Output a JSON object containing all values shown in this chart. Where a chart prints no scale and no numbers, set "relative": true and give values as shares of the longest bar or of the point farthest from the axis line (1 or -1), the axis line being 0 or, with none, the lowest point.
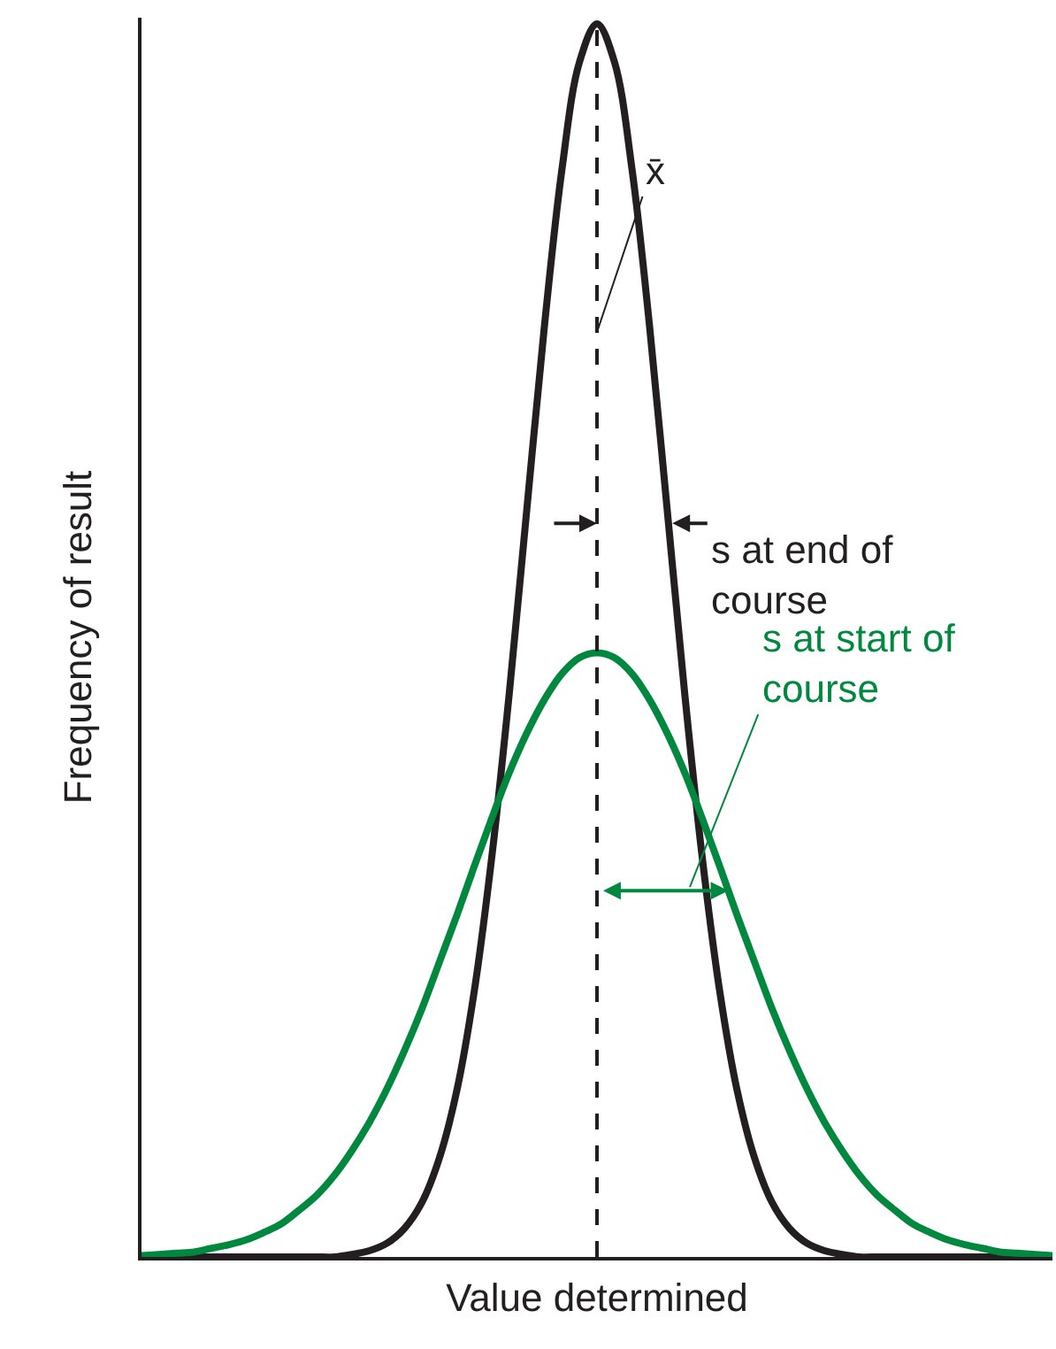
{
  "chart_data": {
    "type": "line",
    "relative": true,
    "tick_labels": false,
    "xlabel": "Value determined",
    "ylabel": "Frequency of result",
    "categories": [
      null,
      null,
      null,
      null,
      null,
      null,
      null,
      null,
      null,
      null,
      null,
      null,
      null,
      null,
      null,
      null,
      null,
      null,
      null,
      null,
      null,
      null,
      null,
      null,
      null,
      null,
      null,
      null,
      null,
      null,
      null,
      null,
      null,
      null,
      null,
      null,
      null,
      null,
      null,
      null,
      null,
      null,
      null,
      null,
      null,
      null,
      null,
      null,
      null,
      null,
      null,
      null,
      null
    ],
    "series": [
      {
        "color": "#231f20",
        "values": [
          0,
          0,
          0,
          0,
          0,
          0,
          0,
          0,
          0,
          0,
          0,
          0,
          0.002,
          0.005,
          0.011,
          0.023,
          0.044,
          0.08,
          0.135,
          0.216,
          0.325,
          0.458,
          0.607,
          0.755,
          0.882,
          0.969,
          1,
          0.969,
          0.882,
          0.755,
          0.607,
          0.458,
          0.325,
          0.216,
          0.135,
          0.08,
          0.044,
          0.023,
          0.011,
          0.005,
          0.002,
          0,
          0,
          0,
          0,
          0,
          0,
          0,
          0,
          0,
          0,
          0,
          0
        ]
      },
      {
        "color": "#00893e",
        "values": [
          0.001,
          0.002,
          0.003,
          0.004,
          0.007,
          0.01,
          0.014,
          0.02,
          0.027,
          0.038,
          0.05,
          0.066,
          0.086,
          0.109,
          0.136,
          0.167,
          0.201,
          0.239,
          0.277,
          0.317,
          0.356,
          0.393,
          0.425,
          0.452,
          0.473,
          0.486,
          0.49,
          0.486,
          0.473,
          0.452,
          0.425,
          0.393,
          0.356,
          0.317,
          0.277,
          0.239,
          0.201,
          0.167,
          0.136,
          0.109,
          0.086,
          0.066,
          0.05,
          0.038,
          0.027,
          0.02,
          0.014,
          0.01,
          0.007,
          0.004,
          0.003,
          0.002,
          0.001
        ]
      }
    ],
    "annotations": [
      "x̄",
      "s at end of course",
      "s at start of course"
    ]
  }
}
